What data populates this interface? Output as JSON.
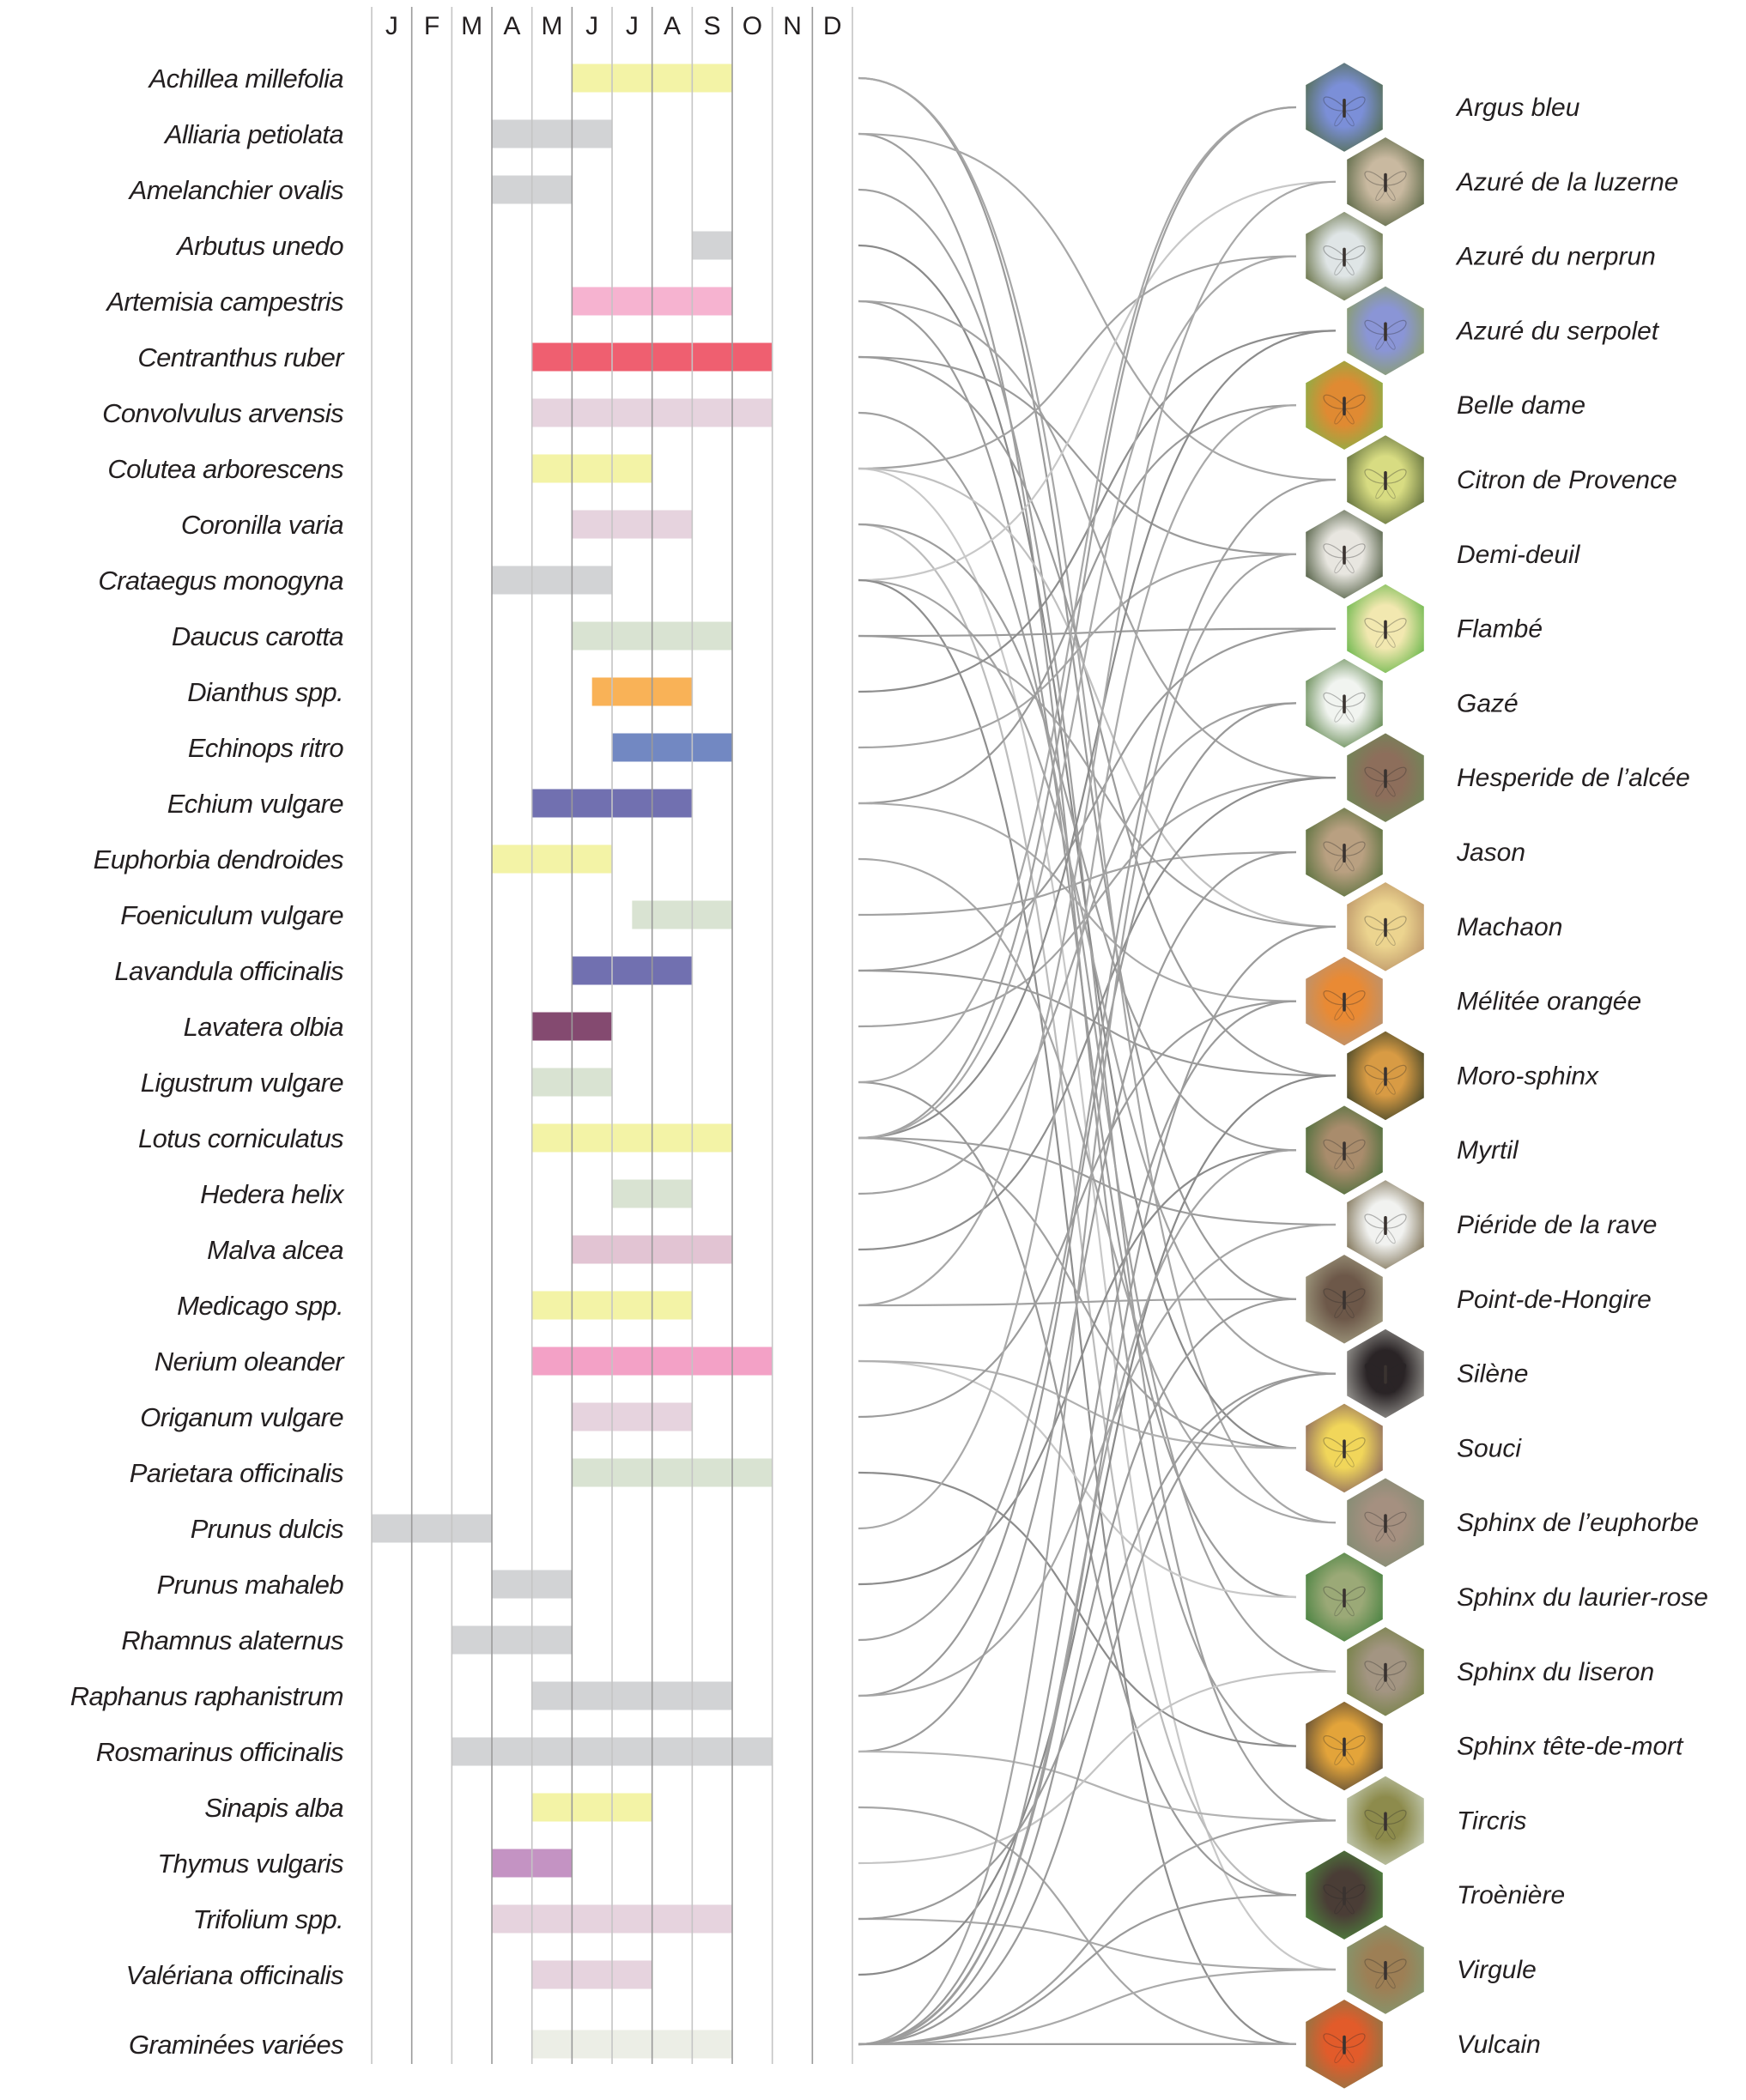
{
  "chart_data": {
    "type": "gantt-network",
    "months": [
      "J",
      "F",
      "M",
      "A",
      "M",
      "J",
      "J",
      "A",
      "S",
      "O",
      "N",
      "D"
    ],
    "plants": [
      {
        "name": "Achillea millefolia",
        "start": 5,
        "end": 9,
        "color": "#f3f3a6"
      },
      {
        "name": "Alliaria petiolata",
        "start": 3,
        "end": 6,
        "color": "#d2d3d5"
      },
      {
        "name": "Amelanchier ovalis",
        "start": 3,
        "end": 5,
        "color": "#d2d3d5"
      },
      {
        "name": "Arbutus unedo",
        "start": 8,
        "end": 9,
        "color": "#d2d3d5"
      },
      {
        "name": "Artemisia campestris",
        "start": 5,
        "end": 9,
        "color": "#f6b3d0"
      },
      {
        "name": "Centranthus ruber",
        "start": 4,
        "end": 10,
        "color": "#ef5f70"
      },
      {
        "name": "Convolvulus arvensis",
        "start": 4,
        "end": 10,
        "color": "#e6d3de"
      },
      {
        "name": "Colutea arborescens",
        "start": 4,
        "end": 7,
        "color": "#f3f3a6"
      },
      {
        "name": "Coronilla varia",
        "start": 5,
        "end": 8,
        "color": "#e6d3de"
      },
      {
        "name": "Crataegus monogyna",
        "start": 3,
        "end": 6,
        "color": "#d2d3d5"
      },
      {
        "name": "Daucus carotta",
        "start": 5,
        "end": 9,
        "color": "#d9e3d2"
      },
      {
        "name": "Dianthus spp.",
        "start": 5.5,
        "end": 8,
        "color": "#f9b257"
      },
      {
        "name": "Echinops ritro",
        "start": 6,
        "end": 9,
        "color": "#7288c2"
      },
      {
        "name": "Echium vulgare",
        "start": 4,
        "end": 8,
        "color": "#7170b0"
      },
      {
        "name": "Euphorbia dendroides",
        "start": 3,
        "end": 6,
        "color": "#f3f3a6"
      },
      {
        "name": "Foeniculum vulgare",
        "start": 6.5,
        "end": 9,
        "color": "#d9e3d2"
      },
      {
        "name": "Lavandula officinalis",
        "start": 5,
        "end": 8,
        "color": "#7170b0"
      },
      {
        "name": "Lavatera olbia",
        "start": 4,
        "end": 6,
        "color": "#844a70"
      },
      {
        "name": "Ligustrum vulgare",
        "start": 4,
        "end": 6,
        "color": "#d9e3d2"
      },
      {
        "name": "Lotus corniculatus",
        "start": 4,
        "end": 9,
        "color": "#f3f3a6"
      },
      {
        "name": "Hedera helix",
        "start": 6,
        "end": 8,
        "color": "#d9e3d2"
      },
      {
        "name": "Malva alcea",
        "start": 5,
        "end": 9,
        "color": "#e2c4d3"
      },
      {
        "name": "Medicago spp.",
        "start": 4,
        "end": 8,
        "color": "#f3f3a6"
      },
      {
        "name": "Nerium oleander",
        "start": 4,
        "end": 10,
        "color": "#f3a1c6"
      },
      {
        "name": "Origanum vulgare",
        "start": 5,
        "end": 8,
        "color": "#e6d3de"
      },
      {
        "name": "Parietara officinalis",
        "start": 5,
        "end": 10,
        "color": "#d9e3d2"
      },
      {
        "name": "Prunus dulcis",
        "start": 0,
        "end": 3,
        "color": "#d2d3d5"
      },
      {
        "name": "Prunus mahaleb",
        "start": 3,
        "end": 5,
        "color": "#d2d3d5"
      },
      {
        "name": "Rhamnus alaternus",
        "start": 2,
        "end": 5,
        "color": "#d2d3d5"
      },
      {
        "name": "Raphanus raphanistrum",
        "start": 4,
        "end": 9,
        "color": "#d2d3d5"
      },
      {
        "name": "Rosmarinus officinalis",
        "start": 2,
        "end": 10,
        "color": "#d2d3d5"
      },
      {
        "name": "Sinapis alba",
        "start": 4,
        "end": 7,
        "color": "#f3f3a6"
      },
      {
        "name": "Thymus vulgaris",
        "start": 3,
        "end": 5,
        "color": "#c493c3"
      },
      {
        "name": "Trifolium spp.",
        "start": 3,
        "end": 9,
        "color": "#e6d3de"
      },
      {
        "name": "Valériana officinalis",
        "start": 4,
        "end": 7,
        "color": "#e6d3de"
      },
      {
        "name": "Graminées variées",
        "start": 4,
        "end": 9,
        "color": "#eceee6"
      }
    ],
    "butterflies": [
      {
        "name": "Argus bleu",
        "photo": [
          "#7b8fd8",
          "#4f6a3e"
        ]
      },
      {
        "name": "Azuré de la luzerne",
        "photo": [
          "#c9b9a0",
          "#4c5d3a"
        ]
      },
      {
        "name": "Azuré du nerprun",
        "photo": [
          "#dfe5e6",
          "#56612f"
        ]
      },
      {
        "name": "Azuré du serpolet",
        "photo": [
          "#8a95d6",
          "#8ba05a"
        ]
      },
      {
        "name": "Belle dame",
        "photo": [
          "#e08a32",
          "#7db54a"
        ]
      },
      {
        "name": "Citron de Provence",
        "photo": [
          "#d8dc82",
          "#4f5f32"
        ]
      },
      {
        "name": "Demi-deuil",
        "photo": [
          "#e8e6e0",
          "#3b4a2c"
        ]
      },
      {
        "name": "Flambé",
        "photo": [
          "#f2e8b0",
          "#58b03e"
        ]
      },
      {
        "name": "Gazé",
        "photo": [
          "#f1f4f0",
          "#4f7a3b"
        ]
      },
      {
        "name": "Hesperide de l’alcée",
        "photo": [
          "#8d6e5b",
          "#6b8b57"
        ]
      },
      {
        "name": "Jason",
        "photo": [
          "#b9a081",
          "#4d6b35"
        ]
      },
      {
        "name": "Machaon",
        "photo": [
          "#ecd48f",
          "#b58c63"
        ]
      },
      {
        "name": "Mélitée orangée",
        "photo": [
          "#e98a34",
          "#b39479"
        ]
      },
      {
        "name": "Moro-sphinx",
        "photo": [
          "#d89b44",
          "#2f3a25"
        ]
      },
      {
        "name": "Myrtil",
        "photo": [
          "#a98c6c",
          "#3f6b35"
        ]
      },
      {
        "name": "Piéride de la rave",
        "photo": [
          "#f1f2f0",
          "#6e6040"
        ]
      },
      {
        "name": "Point-de-Hongire",
        "photo": [
          "#6d5849",
          "#a8a588"
        ]
      },
      {
        "name": "Silène",
        "photo": [
          "#2a2426",
          "#a9a8a2"
        ]
      },
      {
        "name": "Souci",
        "photo": [
          "#f1d65a",
          "#7e5a60"
        ]
      },
      {
        "name": "Sphinx de l’euphorbe",
        "photo": [
          "#a59080",
          "#7e8c72"
        ]
      },
      {
        "name": "Sphinx du laurier-rose",
        "photo": [
          "#9ba977",
          "#3d7d39"
        ]
      },
      {
        "name": "Sphinx du liseron",
        "photo": [
          "#a39582",
          "#6d7e3c"
        ]
      },
      {
        "name": "Sphinx tête-de-mort",
        "photo": [
          "#e3a43a",
          "#4a4036"
        ]
      },
      {
        "name": "Tircris",
        "photo": [
          "#8d8b4c",
          "#c9d2c0"
        ]
      },
      {
        "name": "Troènière",
        "photo": [
          "#4a3d36",
          "#4f8d3e"
        ]
      },
      {
        "name": "Virgule",
        "photo": [
          "#9d7f55",
          "#7f9a72"
        ]
      },
      {
        "name": "Vulcain",
        "photo": [
          "#e25b2a",
          "#837a4a"
        ]
      }
    ],
    "links": [
      [
        0,
        16,
        "#9a9a9a"
      ],
      [
        0,
        19,
        "#a7a7a7"
      ],
      [
        1,
        22,
        "#9f9f9f"
      ],
      [
        1,
        5,
        "#a7a7a7"
      ],
      [
        2,
        23,
        "#9f9f9f"
      ],
      [
        3,
        18,
        "#8a8a8a"
      ],
      [
        4,
        20,
        "#9b9b9b"
      ],
      [
        4,
        9,
        "#a3a3a3"
      ],
      [
        5,
        13,
        "#9c9c9c"
      ],
      [
        5,
        6,
        "#9b9b9b"
      ],
      [
        6,
        21,
        "#a0a0a0"
      ],
      [
        7,
        2,
        "#a3a3a3"
      ],
      [
        7,
        25,
        "#c8c8c8"
      ],
      [
        7,
        11,
        "#c0c0c0"
      ],
      [
        8,
        24,
        "#bcbcbc"
      ],
      [
        8,
        14,
        "#9e9e9e"
      ],
      [
        9,
        17,
        "#a4a4a4"
      ],
      [
        9,
        1,
        "#c8c8c8"
      ],
      [
        9,
        26,
        "#8e8e8e"
      ],
      [
        10,
        11,
        "#a2a2a2"
      ],
      [
        10,
        7,
        "#9a9a9a"
      ],
      [
        11,
        3,
        "#8e8e8e"
      ],
      [
        12,
        6,
        "#a5a5a5"
      ],
      [
        13,
        4,
        "#9a9a9a"
      ],
      [
        13,
        12,
        "#a9a9a9"
      ],
      [
        14,
        19,
        "#a6a6a6"
      ],
      [
        15,
        10,
        "#a2a2a2"
      ],
      [
        16,
        7,
        "#9a9a9a"
      ],
      [
        16,
        13,
        "#9a9a9a"
      ],
      [
        17,
        9,
        "#a2a2a2"
      ],
      [
        18,
        24,
        "#9a9a9a"
      ],
      [
        18,
        0,
        "#a8a8a8"
      ],
      [
        19,
        15,
        "#9d9d9d"
      ],
      [
        19,
        0,
        "#a0a0a0"
      ],
      [
        19,
        3,
        "#8c8c8c"
      ],
      [
        19,
        18,
        "#a1a1a1"
      ],
      [
        19,
        2,
        "#a9a9a9"
      ],
      [
        20,
        8,
        "#a1a1a1"
      ],
      [
        21,
        9,
        "#8e8e8e"
      ],
      [
        22,
        1,
        "#a8a8a8"
      ],
      [
        22,
        16,
        "#a3a3a3"
      ],
      [
        23,
        20,
        "#c8c8c8"
      ],
      [
        23,
        18,
        "#b0b0b0"
      ],
      [
        24,
        12,
        "#9c9c9c"
      ],
      [
        25,
        22,
        "#8c8c8c"
      ],
      [
        26,
        4,
        "#a9a9a9"
      ],
      [
        27,
        14,
        "#8c8c8c"
      ],
      [
        28,
        5,
        "#a0a0a0"
      ],
      [
        29,
        8,
        "#999999"
      ],
      [
        29,
        15,
        "#a6a6a6"
      ],
      [
        30,
        10,
        "#9b9b9b"
      ],
      [
        30,
        23,
        "#b3b3b3"
      ],
      [
        31,
        26,
        "#a6a6a6"
      ],
      [
        32,
        21,
        "#c4c4c4"
      ],
      [
        33,
        25,
        "#a9a9a9"
      ],
      [
        33,
        17,
        "#9a9a9a"
      ],
      [
        34,
        13,
        "#8a8a8a"
      ],
      [
        35,
        26,
        "#9e9e9e"
      ],
      [
        35,
        25,
        "#aaaaaa"
      ],
      [
        35,
        24,
        "#9a9a9a"
      ],
      [
        35,
        23,
        "#a1a1a1"
      ],
      [
        35,
        16,
        "#9a9a9a"
      ],
      [
        35,
        14,
        "#a4a4a4"
      ],
      [
        35,
        12,
        "#9b9b9b"
      ],
      [
        35,
        6,
        "#a3a3a3"
      ],
      [
        35,
        17,
        "#9a9a9a"
      ],
      [
        35,
        11,
        "#9c9c9c"
      ]
    ]
  }
}
